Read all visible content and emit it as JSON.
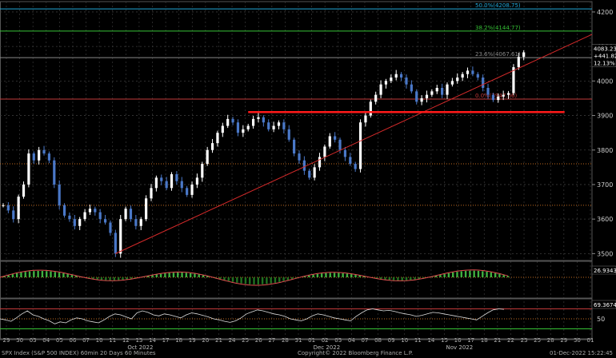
{
  "footer": {
    "left": "SPX Index (S&P 500 INDEX) 60min 20 Days 60 Minutes",
    "center": "Copyright© 2022 Bloomberg Finance L.P.",
    "right": "01-Dec-2022 15:22:45"
  },
  "colors": {
    "background": "#000000",
    "grid": "#3a3a3a",
    "candle_up": "#ffffff",
    "candle_down": "#4a78c8",
    "trendline": "#d42a2a",
    "support": "#ff1a1a",
    "fib_50": "#22a8d8",
    "fib_382": "#36c236",
    "fib_236": "#888888",
    "fib_0": "#c23a3a",
    "dotted_level": "#c06a20",
    "macd_line": "#e05050",
    "macd_hist": "#40b040",
    "rsi_line": "#dddddd"
  },
  "chart_data": [
    {
      "type": "candlestick",
      "title": "",
      "yticks": [
        3500,
        3600,
        3700,
        3800,
        3900,
        4000,
        4100,
        4200
      ],
      "ylim": [
        3480,
        4230
      ],
      "x_day_labels": [
        "29",
        "30",
        "03",
        "04",
        "05",
        "06",
        "07",
        "10",
        "11",
        "12",
        "13",
        "14",
        "17",
        "18",
        "19",
        "20",
        "21",
        "24",
        "25",
        "26",
        "27",
        "28",
        "31",
        "01",
        "02",
        "03",
        "04",
        "07",
        "08",
        "09",
        "10",
        "11",
        "14",
        "15",
        "16",
        "17",
        "18",
        "21",
        "22",
        "23",
        "25",
        "28",
        "29",
        "30",
        "01"
      ],
      "month_labels": [
        {
          "text": "Oct 2022",
          "at_day": "12"
        },
        {
          "text": "Nov 2022",
          "at_day": "15"
        },
        {
          "text": "Dec 2022",
          "at_day": "01"
        }
      ],
      "close_path": [
        [
          0,
          3640
        ],
        [
          1,
          3625
        ],
        [
          2,
          3600
        ],
        [
          3,
          3665
        ],
        [
          4,
          3700
        ],
        [
          5,
          3790
        ],
        [
          6,
          3770
        ],
        [
          7,
          3800
        ],
        [
          8,
          3790
        ],
        [
          9,
          3770
        ],
        [
          10,
          3700
        ],
        [
          11,
          3640
        ],
        [
          12,
          3610
        ],
        [
          13,
          3600
        ],
        [
          14,
          3580
        ],
        [
          15,
          3600
        ],
        [
          16,
          3620
        ],
        [
          17,
          3630
        ],
        [
          18,
          3620
        ],
        [
          19,
          3600
        ],
        [
          20,
          3590
        ],
        [
          21,
          3560
        ],
        [
          22,
          3500
        ],
        [
          23,
          3600
        ],
        [
          24,
          3630
        ],
        [
          25,
          3600
        ],
        [
          26,
          3580
        ],
        [
          27,
          3600
        ],
        [
          28,
          3660
        ],
        [
          29,
          3690
        ],
        [
          30,
          3720
        ],
        [
          31,
          3710
        ],
        [
          32,
          3690
        ],
        [
          33,
          3730
        ],
        [
          34,
          3710
        ],
        [
          35,
          3690
        ],
        [
          36,
          3670
        ],
        [
          37,
          3700
        ],
        [
          38,
          3720
        ],
        [
          39,
          3760
        ],
        [
          40,
          3800
        ],
        [
          41,
          3820
        ],
        [
          42,
          3850
        ],
        [
          43,
          3870
        ],
        [
          44,
          3890
        ],
        [
          45,
          3880
        ],
        [
          46,
          3850
        ],
        [
          47,
          3860
        ],
        [
          48,
          3870
        ],
        [
          49,
          3890
        ],
        [
          50,
          3895
        ],
        [
          51,
          3880
        ],
        [
          52,
          3860
        ],
        [
          53,
          3870
        ],
        [
          54,
          3880
        ],
        [
          55,
          3860
        ],
        [
          56,
          3830
        ],
        [
          57,
          3790
        ],
        [
          58,
          3770
        ],
        [
          59,
          3740
        ],
        [
          60,
          3720
        ],
        [
          61,
          3750
        ],
        [
          62,
          3780
        ],
        [
          63,
          3810
        ],
        [
          64,
          3840
        ],
        [
          65,
          3830
        ],
        [
          66,
          3800
        ],
        [
          67,
          3780
        ],
        [
          68,
          3760
        ],
        [
          69,
          3745
        ],
        [
          70,
          3880
        ],
        [
          71,
          3900
        ],
        [
          72,
          3940
        ],
        [
          73,
          3960
        ],
        [
          74,
          3990
        ],
        [
          75,
          4000
        ],
        [
          76,
          4010
        ],
        [
          77,
          4020
        ],
        [
          78,
          4010
        ],
        [
          79,
          3990
        ],
        [
          80,
          3970
        ],
        [
          81,
          3940
        ],
        [
          82,
          3950
        ],
        [
          83,
          3960
        ],
        [
          84,
          3970
        ],
        [
          85,
          3980
        ],
        [
          86,
          3960
        ],
        [
          87,
          3990
        ],
        [
          88,
          4000
        ],
        [
          89,
          4010
        ],
        [
          90,
          4020
        ],
        [
          91,
          4030
        ],
        [
          92,
          4020
        ],
        [
          93,
          4010
        ],
        [
          94,
          3980
        ],
        [
          95,
          3960
        ],
        [
          96,
          3945
        ],
        [
          97,
          3955
        ],
        [
          98,
          3960
        ],
        [
          99,
          3965
        ],
        [
          100,
          4040
        ],
        [
          101,
          4070
        ],
        [
          102,
          4083
        ]
      ],
      "trendline": [
        [
          22,
          3500
        ],
        [
          116,
          4135
        ]
      ],
      "support_line": {
        "value": 3910,
        "from": 48,
        "to": 110
      },
      "fibonacci": [
        {
          "label": "50.0%(4208.75)",
          "value": 4208.75
        },
        {
          "label": "38.2%(4144.77)",
          "value": 4144.77
        },
        {
          "label": "23.6%(4067.61)",
          "value": 4067.61
        },
        {
          "label": "0.0%(3947.66)",
          "value": 3947.66
        }
      ],
      "dotted_levels": [
        3640,
        3760
      ],
      "last_price_labels": [
        "4083.23",
        "+441.82",
        "12.13%"
      ]
    },
    {
      "type": "line",
      "title": "MACD",
      "last_value_label": "26.9343",
      "baseline": 0
    },
    {
      "type": "line",
      "title": "RSI",
      "yticks": [
        50
      ],
      "levels": [
        30,
        70
      ],
      "last_value_label": "69.3674",
      "values": [
        50,
        48,
        45,
        52,
        60,
        66,
        58,
        55,
        50,
        46,
        40,
        44,
        42,
        48,
        52,
        50,
        46,
        44,
        42,
        48,
        55,
        60,
        58,
        54,
        50,
        62,
        66,
        63,
        58,
        56,
        60,
        58,
        55,
        52,
        58,
        62,
        60,
        57,
        54,
        50,
        48,
        45,
        43,
        46,
        52,
        60,
        64,
        68,
        66,
        63,
        60,
        58,
        55,
        50,
        48,
        46,
        50,
        56,
        60,
        58,
        55,
        52,
        50,
        48,
        46,
        55,
        62,
        68,
        70,
        68,
        66,
        67,
        65,
        62,
        60,
        58,
        55,
        57,
        60,
        63,
        62,
        60,
        58,
        56,
        54,
        52,
        50,
        48,
        55,
        62,
        68,
        70,
        69
      ]
    }
  ]
}
